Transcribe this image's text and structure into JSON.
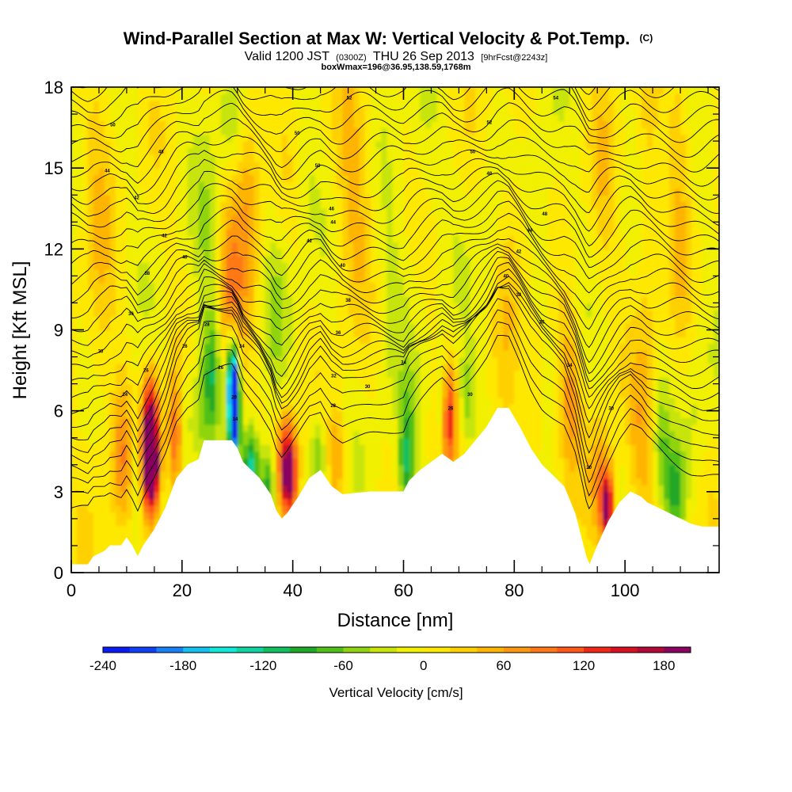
{
  "chart_data": {
    "type": "heatmap",
    "title": "Wind-Parallel Section at Max W: Vertical Velocity & Pot.Temp.",
    "title_mark": "(C)",
    "subtitle_valid": "Valid 1200 JST",
    "subtitle_utc": "(0300Z)",
    "subtitle_date": "THU 26 Sep 2013",
    "subtitle_fcst": "[9hrFcst@2243z]",
    "subtitle_box": "boxWmax=196@36.95,138.59,1768m",
    "xlabel": "Distance [nm]",
    "ylabel": "Height [Kft MSL]",
    "xlim": [
      0,
      117
    ],
    "ylim": [
      0,
      18
    ],
    "x_ticks": [
      "0",
      "20",
      "40",
      "60",
      "80",
      "100"
    ],
    "y_ticks": [
      "0",
      "3",
      "6",
      "9",
      "12",
      "15",
      "18"
    ],
    "colorbar": {
      "title": "Vertical Velocity [cm/s]",
      "min": -240,
      "max": 200,
      "tick_values": [
        -240,
        -180,
        -120,
        -60,
        0,
        60,
        120,
        180
      ],
      "tick_labels": [
        "-240",
        "-180",
        "-120",
        "-60",
        "0",
        "60",
        "120",
        "180"
      ],
      "colors": [
        "#0a1cf0",
        "#1040f5",
        "#1a80f5",
        "#14c0f0",
        "#10e8d8",
        "#10d4a0",
        "#10c060",
        "#20a828",
        "#50c018",
        "#90d410",
        "#c8e408",
        "#f0f000",
        "#ffe800",
        "#ffd000",
        "#ffb400",
        "#ff9810",
        "#ff7818",
        "#ff5818",
        "#f02818",
        "#d81020",
        "#b40838",
        "#8a0460"
      ]
    },
    "terrain": [
      [
        0,
        0.3
      ],
      [
        3,
        0.3
      ],
      [
        4,
        0.6
      ],
      [
        6,
        0.8
      ],
      [
        7,
        1.0
      ],
      [
        9,
        1.0
      ],
      [
        10,
        1.3
      ],
      [
        11,
        1.0
      ],
      [
        12,
        0.6
      ],
      [
        13,
        1.0
      ],
      [
        15,
        1.6
      ],
      [
        17,
        2.4
      ],
      [
        19,
        3.5
      ],
      [
        21,
        4.0
      ],
      [
        23,
        4.2
      ],
      [
        24,
        4.9
      ],
      [
        29,
        4.9
      ],
      [
        30,
        4.6
      ],
      [
        31,
        4.1
      ],
      [
        32,
        3.9
      ],
      [
        34,
        3.5
      ],
      [
        36,
        2.9
      ],
      [
        37,
        2.3
      ],
      [
        38,
        2.0
      ],
      [
        39,
        2.2
      ],
      [
        41,
        2.8
      ],
      [
        43,
        3.5
      ],
      [
        45,
        3.8
      ],
      [
        47,
        3.2
      ],
      [
        49,
        2.9
      ],
      [
        54,
        3.0
      ],
      [
        57,
        3.0
      ],
      [
        60,
        3.0
      ],
      [
        61,
        3.4
      ],
      [
        63,
        3.8
      ],
      [
        65,
        4.1
      ],
      [
        67,
        4.4
      ],
      [
        69,
        4.1
      ],
      [
        71,
        4.4
      ],
      [
        73,
        4.9
      ],
      [
        75,
        5.4
      ],
      [
        77,
        6.1
      ],
      [
        79,
        6.1
      ],
      [
        81,
        5.4
      ],
      [
        83,
        4.6
      ],
      [
        85,
        4.0
      ],
      [
        87,
        3.6
      ],
      [
        89,
        3.2
      ],
      [
        91,
        2.2
      ],
      [
        92,
        1.4
      ],
      [
        93,
        0.6
      ],
      [
        93.6,
        0.3
      ],
      [
        94.2,
        0.6
      ],
      [
        95,
        1.0
      ],
      [
        97,
        1.9
      ],
      [
        99,
        2.6
      ],
      [
        101,
        3.0
      ],
      [
        103,
        2.8
      ],
      [
        104,
        2.6
      ],
      [
        106,
        2.4
      ],
      [
        108,
        2.2
      ],
      [
        110,
        2.0
      ],
      [
        112,
        1.8
      ],
      [
        114,
        1.7
      ],
      [
        117,
        1.7
      ]
    ],
    "w_features": [
      {
        "x": 14.3,
        "y": 5.0,
        "sx": 1.1,
        "sy": 1.5,
        "w": 240
      },
      {
        "x": 14.6,
        "y": 3.6,
        "sx": 1.0,
        "sy": 1.0,
        "w": 130
      },
      {
        "x": 9.0,
        "y": 4.3,
        "sx": 1.3,
        "sy": 1.8,
        "w": 70
      },
      {
        "x": 18.8,
        "y": 5.0,
        "sx": 1.0,
        "sy": 1.7,
        "w": 110
      },
      {
        "x": 20.5,
        "y": 6.0,
        "sx": 1.2,
        "sy": 1.6,
        "w": -40
      },
      {
        "x": 11.8,
        "y": 4.2,
        "sx": 0.7,
        "sy": 1.8,
        "w": -50
      },
      {
        "x": 23.5,
        "y": 6.2,
        "sx": 1.0,
        "sy": 1.4,
        "w": -45
      },
      {
        "x": 25.5,
        "y": 7.3,
        "sx": 0.9,
        "sy": 1.4,
        "w": -70
      },
      {
        "x": 29.4,
        "y": 6.1,
        "sx": 0.65,
        "sy": 1.4,
        "w": -245
      },
      {
        "x": 29.0,
        "y": 7.3,
        "sx": 0.8,
        "sy": 1.2,
        "w": -120
      },
      {
        "x": 32.5,
        "y": 3.8,
        "sx": 1.0,
        "sy": 1.1,
        "w": -140
      },
      {
        "x": 35.5,
        "y": 3.2,
        "sx": 1.0,
        "sy": 1.0,
        "w": -110
      },
      {
        "x": 28.8,
        "y": 10.0,
        "sx": 1.4,
        "sy": 2.3,
        "w": 80
      },
      {
        "x": 32.0,
        "y": 13.8,
        "sx": 1.6,
        "sy": 3.5,
        "w": 55
      },
      {
        "x": 24.5,
        "y": 11.0,
        "sx": 1.6,
        "sy": 5.0,
        "w": -30
      },
      {
        "x": 28.5,
        "y": 17.0,
        "sx": 1.6,
        "sy": 1.2,
        "w": -35
      },
      {
        "x": 39.0,
        "y": 4.2,
        "sx": 1.2,
        "sy": 1.2,
        "w": 170
      },
      {
        "x": 39.5,
        "y": 3.2,
        "sx": 1.0,
        "sy": 0.8,
        "w": 100
      },
      {
        "x": 44.5,
        "y": 4.4,
        "sx": 1.0,
        "sy": 1.1,
        "w": -65
      },
      {
        "x": 37.0,
        "y": 10.0,
        "sx": 1.8,
        "sy": 2.2,
        "w": -30
      },
      {
        "x": 48.0,
        "y": 4.2,
        "sx": 1.0,
        "sy": 1.3,
        "w": 60
      },
      {
        "x": 51.0,
        "y": 14.5,
        "sx": 2.3,
        "sy": 3.5,
        "w": 45
      },
      {
        "x": 57.5,
        "y": 10.0,
        "sx": 2.0,
        "sy": 3.0,
        "w": -25
      },
      {
        "x": 60.5,
        "y": 4.0,
        "sx": 1.0,
        "sy": 1.2,
        "w": -105
      },
      {
        "x": 60.8,
        "y": 6.2,
        "sx": 1.2,
        "sy": 1.2,
        "w": -30
      },
      {
        "x": 63.5,
        "y": 15.5,
        "sx": 2.0,
        "sy": 3.0,
        "w": -20
      },
      {
        "x": 68.2,
        "y": 5.8,
        "sx": 0.9,
        "sy": 1.3,
        "w": 120
      },
      {
        "x": 66.8,
        "y": 6.4,
        "sx": 0.7,
        "sy": 1.2,
        "w": -55
      },
      {
        "x": 71.5,
        "y": 6.6,
        "sx": 0.9,
        "sy": 1.2,
        "w": -55
      },
      {
        "x": 74.5,
        "y": 11.0,
        "sx": 1.5,
        "sy": 3.0,
        "w": -20
      },
      {
        "x": 79.5,
        "y": 11.5,
        "sx": 1.7,
        "sy": 3.5,
        "w": 35
      },
      {
        "x": 85.0,
        "y": 12.5,
        "sx": 1.4,
        "sy": 3.0,
        "w": -30
      },
      {
        "x": 84.0,
        "y": 7.0,
        "sx": 1.3,
        "sy": 2.0,
        "w": 40
      },
      {
        "x": 90.0,
        "y": 6.8,
        "sx": 1.4,
        "sy": 2.2,
        "w": 60
      },
      {
        "x": 96.8,
        "y": 2.4,
        "sx": 0.9,
        "sy": 1.0,
        "w": 175
      },
      {
        "x": 95.5,
        "y": 3.5,
        "sx": 1.5,
        "sy": 1.5,
        "w": 60
      },
      {
        "x": 103.0,
        "y": 5.0,
        "sx": 1.6,
        "sy": 2.5,
        "w": 45
      },
      {
        "x": 109.0,
        "y": 3.0,
        "sx": 1.3,
        "sy": 1.2,
        "w": -80
      },
      {
        "x": 106.5,
        "y": 5.0,
        "sx": 1.0,
        "sy": 1.4,
        "w": -45
      },
      {
        "x": 113.0,
        "y": 6.0,
        "sx": 1.8,
        "sy": 2.0,
        "w": -25
      },
      {
        "x": 110.0,
        "y": 15.0,
        "sx": 1.5,
        "sy": 4.0,
        "w": 40
      },
      {
        "x": 104.0,
        "y": 13.0,
        "sx": 1.3,
        "sy": 4.0,
        "w": 30
      },
      {
        "x": 96.0,
        "y": 15.0,
        "sx": 1.5,
        "sy": 4.0,
        "w": 25
      },
      {
        "x": 5.0,
        "y": 12.0,
        "sx": 2.0,
        "sy": 6.0,
        "w": 30
      },
      {
        "x": 42.5,
        "y": 14.5,
        "sx": 1.4,
        "sy": 3.0,
        "w": -18
      }
    ],
    "theta_contours": {
      "levels": 34,
      "labels": [
        {
          "x": 7.5,
          "y": 16.6,
          "text": "50"
        },
        {
          "x": 16.2,
          "y": 15.6,
          "text": "48"
        },
        {
          "x": 6.5,
          "y": 14.9,
          "text": "44"
        },
        {
          "x": 11.8,
          "y": 13.9,
          "text": "42"
        },
        {
          "x": 16.8,
          "y": 12.5,
          "text": "42"
        },
        {
          "x": 20.5,
          "y": 11.7,
          "text": "40"
        },
        {
          "x": 13.7,
          "y": 11.1,
          "text": "38"
        },
        {
          "x": 10.8,
          "y": 9.6,
          "text": "36"
        },
        {
          "x": 5.3,
          "y": 8.2,
          "text": "30"
        },
        {
          "x": 13.5,
          "y": 7.5,
          "text": "26"
        },
        {
          "x": 9.7,
          "y": 6.6,
          "text": "24"
        },
        {
          "x": 20.5,
          "y": 8.4,
          "text": "26"
        },
        {
          "x": 24.5,
          "y": 9.2,
          "text": "28"
        },
        {
          "x": 27.0,
          "y": 7.6,
          "text": "26"
        },
        {
          "x": 30.8,
          "y": 8.4,
          "text": "34"
        },
        {
          "x": 29.4,
          "y": 6.5,
          "text": "20"
        },
        {
          "x": 29.6,
          "y": 5.7,
          "text": "14"
        },
        {
          "x": 40.8,
          "y": 16.3,
          "text": "50"
        },
        {
          "x": 44.5,
          "y": 15.1,
          "text": "50"
        },
        {
          "x": 47.0,
          "y": 13.5,
          "text": "46"
        },
        {
          "x": 47.3,
          "y": 13.0,
          "text": "44"
        },
        {
          "x": 43.0,
          "y": 12.3,
          "text": "42"
        },
        {
          "x": 49.0,
          "y": 11.4,
          "text": "40"
        },
        {
          "x": 50.0,
          "y": 10.1,
          "text": "38"
        },
        {
          "x": 48.2,
          "y": 8.9,
          "text": "36"
        },
        {
          "x": 47.4,
          "y": 7.3,
          "text": "32"
        },
        {
          "x": 53.5,
          "y": 6.9,
          "text": "30"
        },
        {
          "x": 60.0,
          "y": 7.8,
          "text": "34"
        },
        {
          "x": 47.3,
          "y": 6.2,
          "text": "28"
        },
        {
          "x": 50.2,
          "y": 17.6,
          "text": "52"
        },
        {
          "x": 72.5,
          "y": 15.6,
          "text": "50"
        },
        {
          "x": 75.5,
          "y": 16.7,
          "text": "52"
        },
        {
          "x": 87.5,
          "y": 17.6,
          "text": "54"
        },
        {
          "x": 75.5,
          "y": 14.8,
          "text": "48"
        },
        {
          "x": 85.5,
          "y": 13.3,
          "text": "48"
        },
        {
          "x": 82.8,
          "y": 12.7,
          "text": "44"
        },
        {
          "x": 80.8,
          "y": 11.9,
          "text": "42"
        },
        {
          "x": 78.5,
          "y": 11.0,
          "text": "40"
        },
        {
          "x": 80.8,
          "y": 10.3,
          "text": "38"
        },
        {
          "x": 85.0,
          "y": 9.3,
          "text": "36"
        },
        {
          "x": 90.0,
          "y": 7.7,
          "text": "34"
        },
        {
          "x": 72.0,
          "y": 6.6,
          "text": "30"
        },
        {
          "x": 68.5,
          "y": 6.1,
          "text": "26"
        },
        {
          "x": 97.5,
          "y": 6.1,
          "text": "30"
        },
        {
          "x": 93.5,
          "y": 3.9,
          "text": "20"
        }
      ]
    }
  }
}
